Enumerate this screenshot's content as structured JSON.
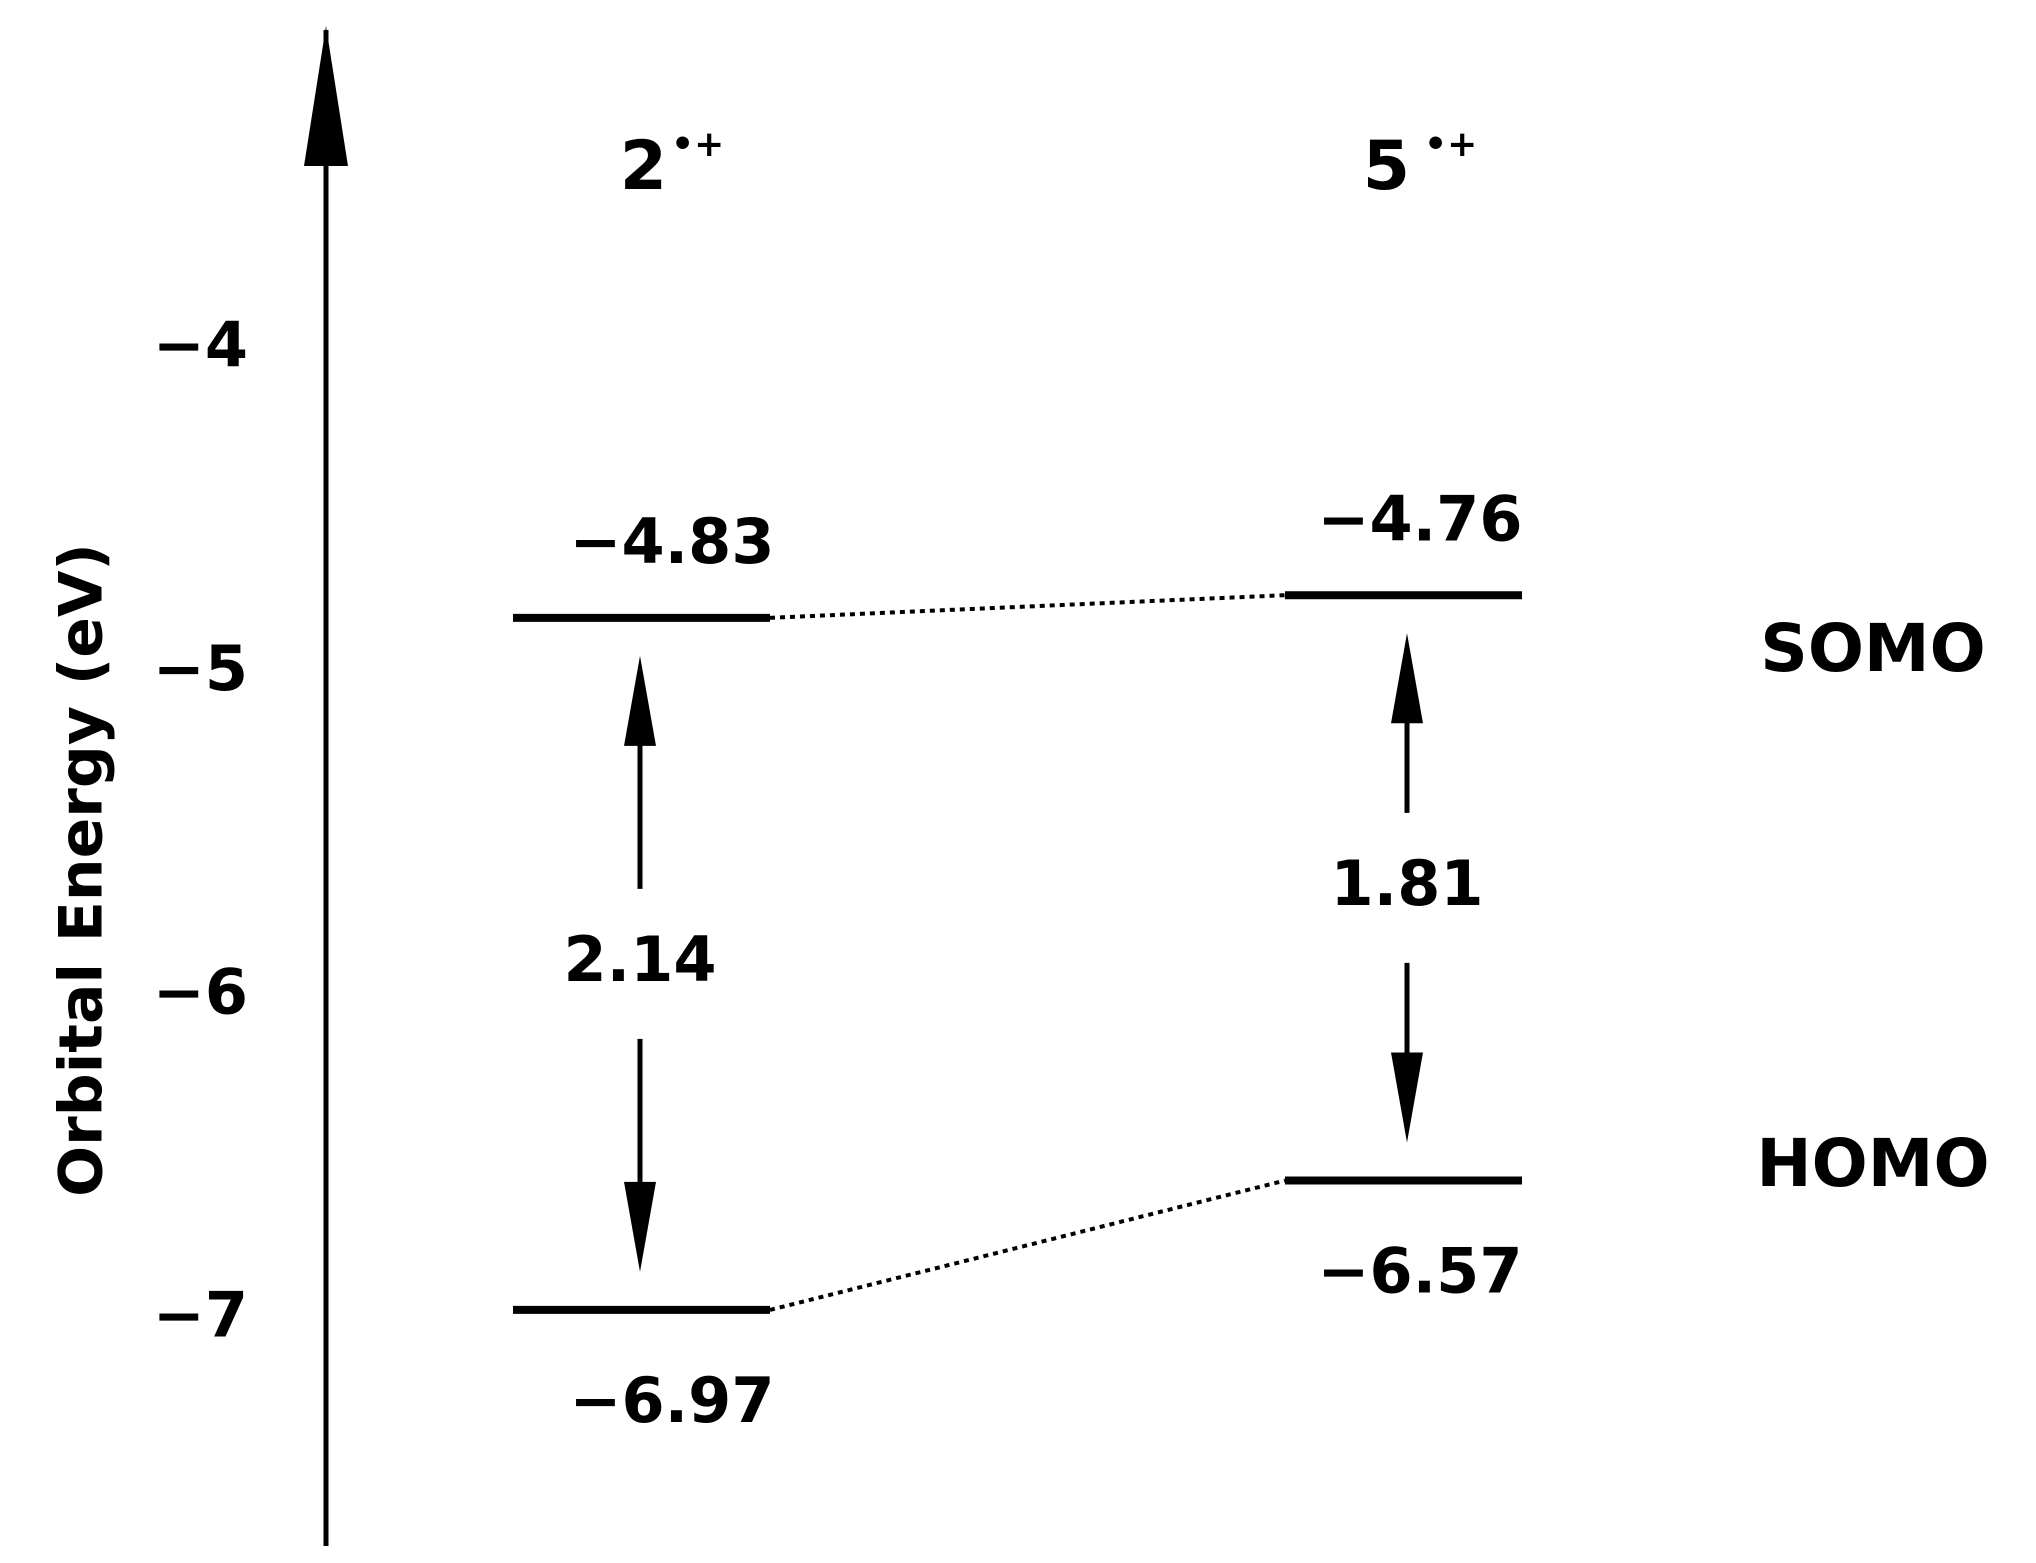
{
  "chart_data": {
    "type": "energy_level",
    "ylabel": "Orbital Energy (eV)",
    "ylim": [
      -7.7,
      -3
    ],
    "yticks": [
      {
        "value": -4,
        "label": "−4"
      },
      {
        "value": -5,
        "label": "−5"
      },
      {
        "value": -6,
        "label": "−6"
      },
      {
        "value": -7,
        "label": "−7"
      }
    ],
    "categories": [
      "2",
      "5"
    ],
    "category_superscripts": [
      "•+",
      "•+"
    ],
    "series": [
      {
        "name": "SOMO",
        "color": "#000000",
        "values": [
          -4.83,
          -4.76
        ],
        "value_labels": [
          "−4.83",
          "−4.76"
        ]
      },
      {
        "name": "HOMO",
        "color": "#000000",
        "values": [
          -6.97,
          -6.57
        ],
        "value_labels": [
          "−6.97",
          "−6.57"
        ]
      }
    ],
    "gaps": [
      2.14,
      1.81
    ]
  }
}
